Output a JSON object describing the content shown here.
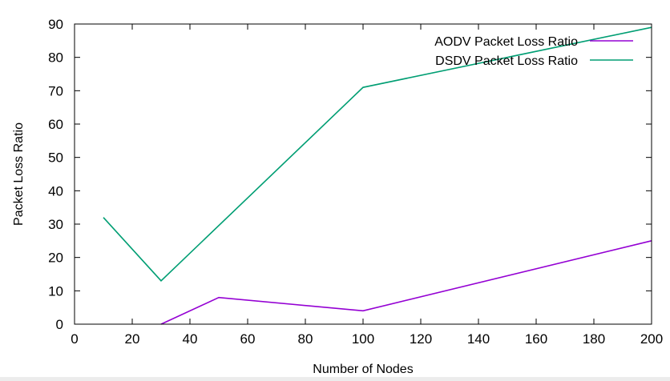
{
  "chart_data": {
    "type": "line",
    "xlabel": "Number of Nodes",
    "ylabel": "Packet Loss Ratio",
    "xlim": [
      0,
      200
    ],
    "ylim": [
      0,
      90
    ],
    "xticks": [
      0,
      20,
      40,
      60,
      80,
      100,
      120,
      140,
      160,
      180,
      200
    ],
    "yticks": [
      0,
      10,
      20,
      30,
      40,
      50,
      60,
      70,
      80,
      90
    ],
    "grid": false,
    "legend_position": "top-right",
    "series": [
      {
        "name": "AODV Packet Loss Ratio",
        "color": "#9400d3",
        "points": [
          [
            30,
            0
          ],
          [
            50,
            8
          ],
          [
            100,
            4
          ],
          [
            200,
            25
          ]
        ]
      },
      {
        "name": "DSDV Packet Loss Ratio",
        "color": "#009e73",
        "points": [
          [
            10,
            32
          ],
          [
            30,
            13
          ],
          [
            100,
            71
          ],
          [
            200,
            89
          ]
        ]
      }
    ]
  }
}
